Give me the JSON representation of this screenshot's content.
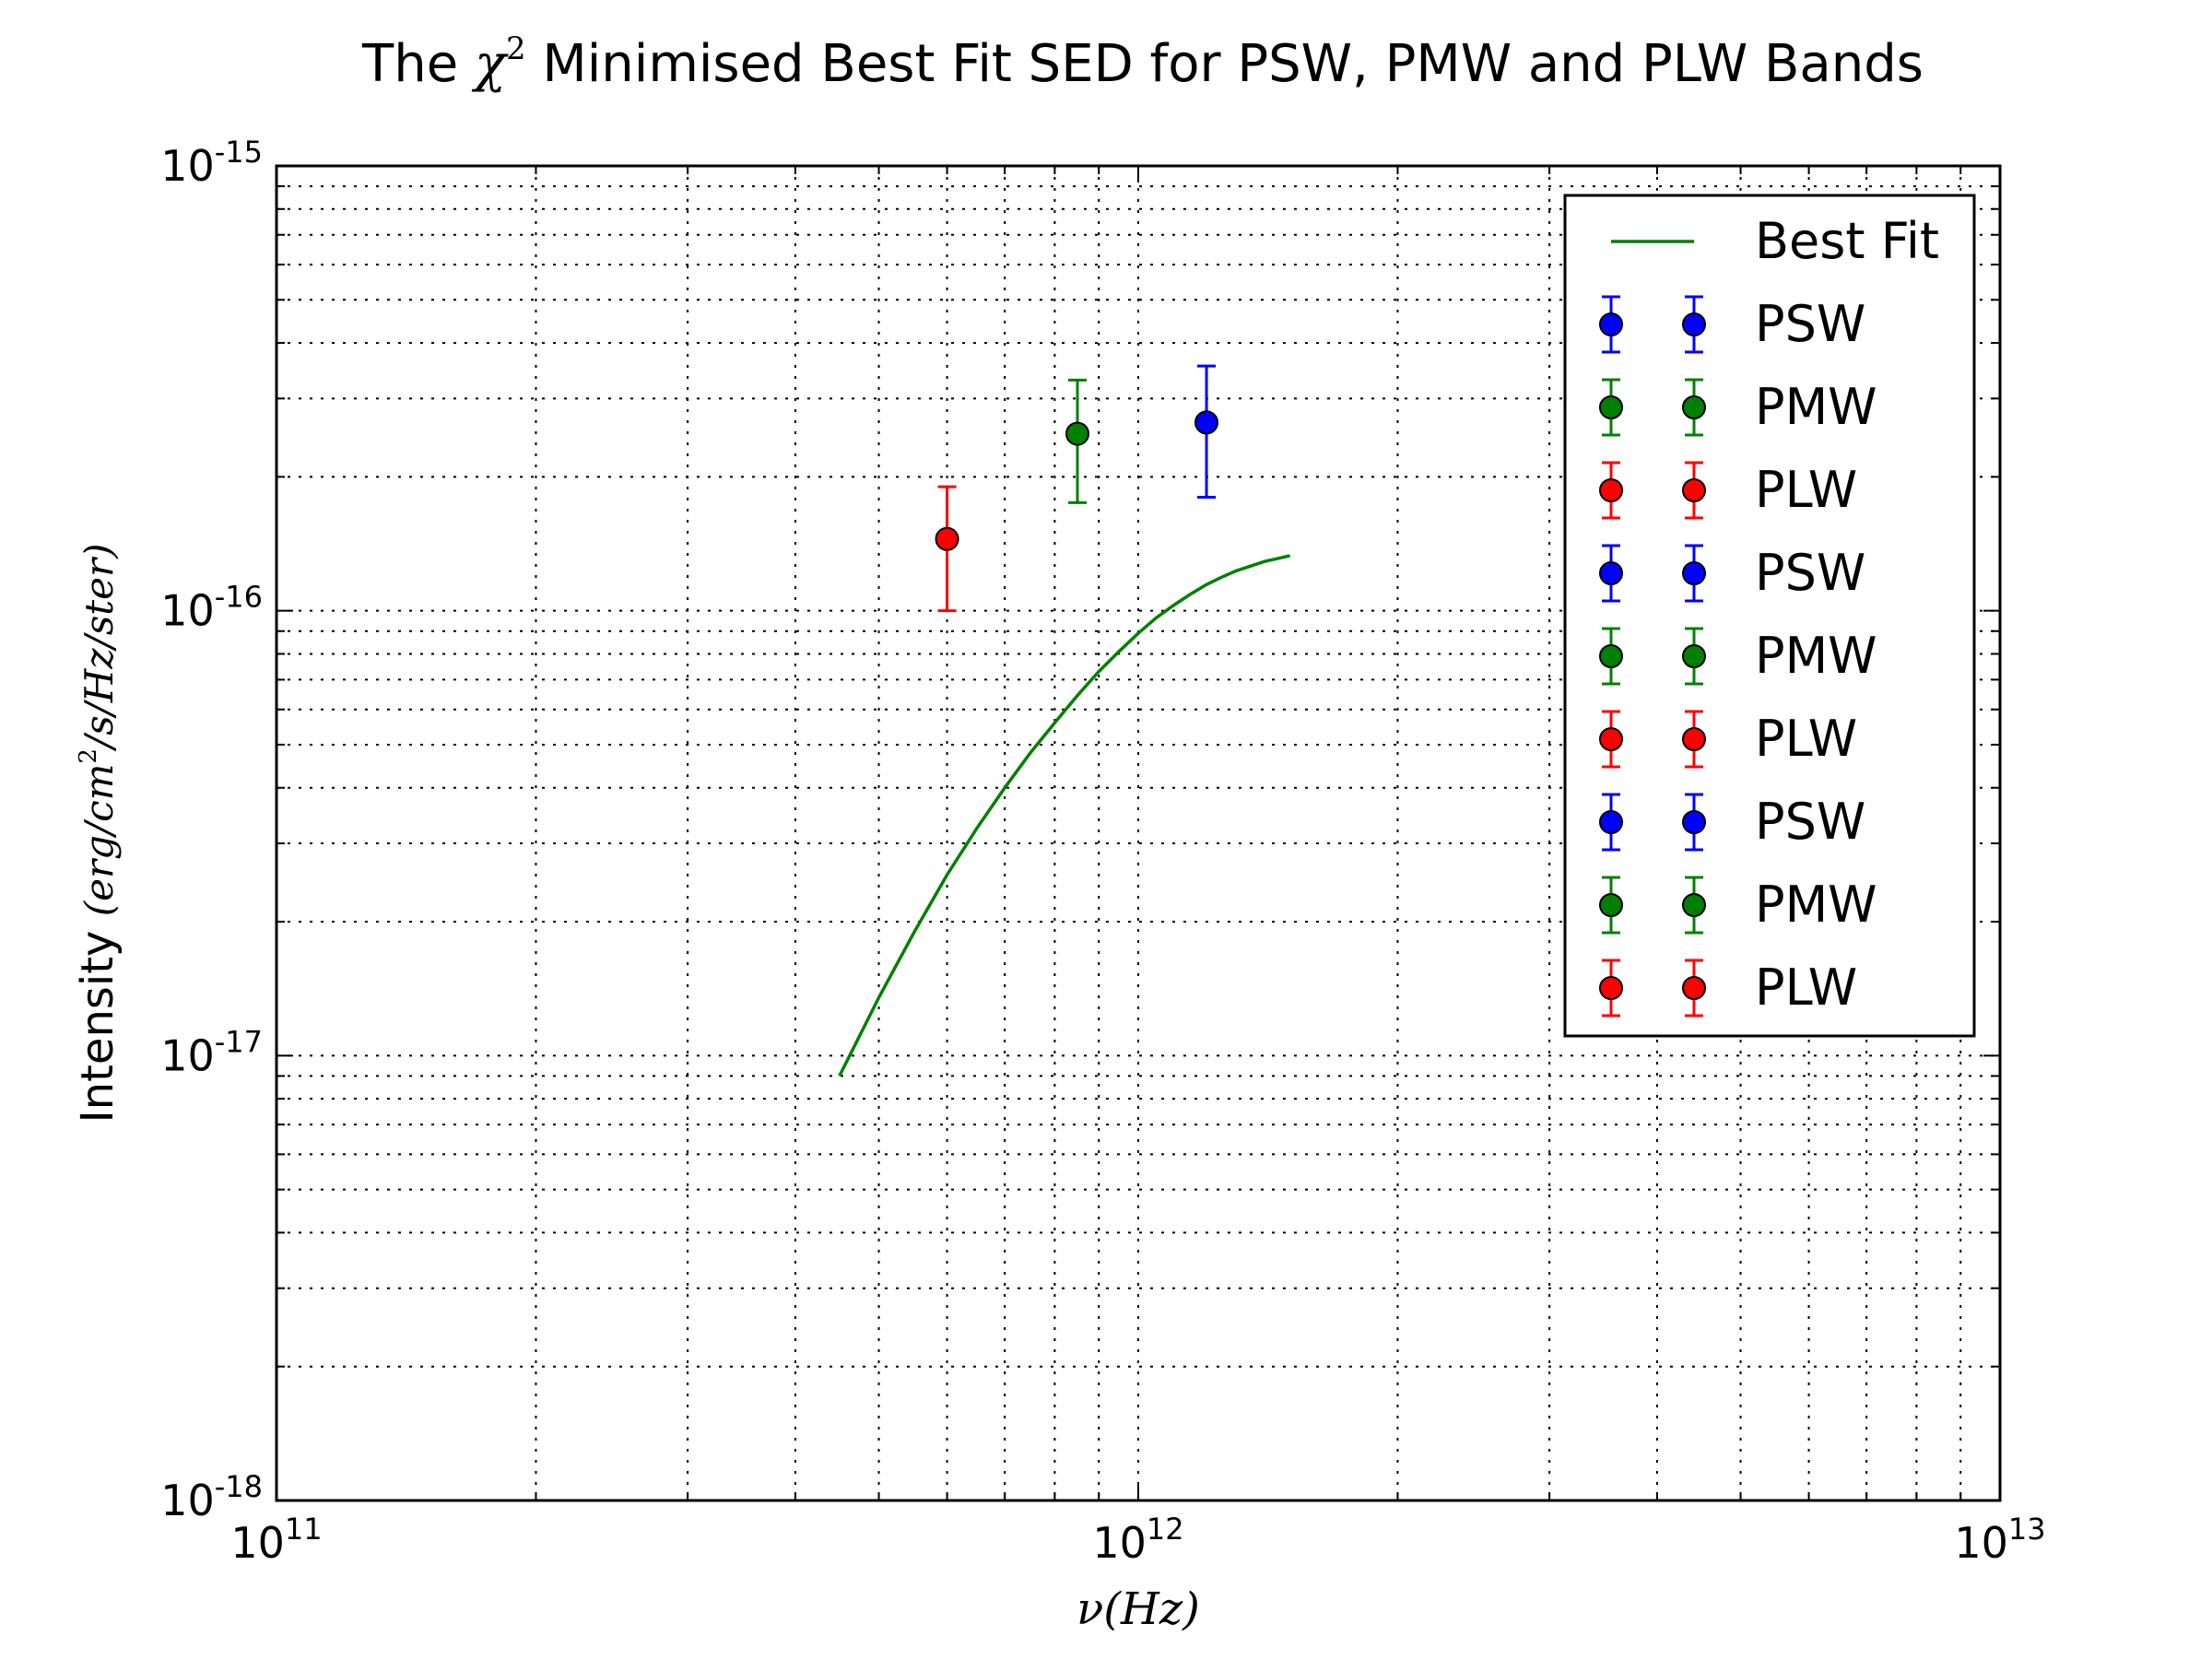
{
  "chart_data": {
    "type": "scatter",
    "title": {
      "prefix": "The",
      "symbol": "χ",
      "sup": "2",
      "suffix": "Minimised Best Fit SED for PSW, PMW and PLW Bands"
    },
    "xlabel": "ν(Hz)",
    "ylabel": {
      "text": "Intensity",
      "units_pre": "(erg/cm",
      "units_sup": "2",
      "units_post": "/s/Hz/ster)"
    },
    "xscale": "log",
    "yscale": "log",
    "xlim": [
      100000000000.0,
      10000000000000.0
    ],
    "ylim": [
      1e-18,
      1e-15
    ],
    "grid": true,
    "legend_position": "top-right",
    "x_ticks": [
      {
        "value": 100000000000.0,
        "base": "10",
        "exp": "11"
      },
      {
        "value": 1000000000000.0,
        "base": "10",
        "exp": "12"
      },
      {
        "value": 10000000000000.0,
        "base": "10",
        "exp": "13"
      }
    ],
    "y_ticks": [
      {
        "value": 1e-18,
        "base": "10",
        "exp": "-18"
      },
      {
        "value": 1e-17,
        "base": "10",
        "exp": "-17"
      },
      {
        "value": 1e-16,
        "base": "10",
        "exp": "-16"
      },
      {
        "value": 1e-15,
        "base": "10",
        "exp": "-15"
      }
    ],
    "best_fit": {
      "name": "Best Fit",
      "color": "#008000",
      "x": [
        450000000000.0,
        500000000000.0,
        550000000000.0,
        600000000000.0,
        650000000000.0,
        700000000000.0,
        750000000000.0,
        800000000000.0,
        850000000000.0,
        900000000000.0,
        950000000000.0,
        1000000000000.0,
        1050000000000.0,
        1100000000000.0,
        1150000000000.0,
        1200000000000.0,
        1250000000000.0,
        1300000000000.0,
        1350000000000.0,
        1400000000000.0,
        1450000000000.0,
        1500000000000.0
      ],
      "y": [
        9e-18,
        1.35e-17,
        1.9e-17,
        2.55e-17,
        3.25e-17,
        4e-17,
        4.8e-17,
        5.6e-17,
        6.45e-17,
        7.3e-17,
        8.1e-17,
        8.9e-17,
        9.65e-17,
        1.03e-16,
        1.09e-16,
        1.145e-16,
        1.19e-16,
        1.23e-16,
        1.26e-16,
        1.29e-16,
        1.31e-16,
        1.33e-16
      ]
    },
    "series": [
      {
        "name": "PLW",
        "color": "#ff0000",
        "x": 600000000000.0,
        "y": 1.45e-16,
        "yerr_low": 1e-16,
        "yerr_high": 1.9e-16
      },
      {
        "name": "PMW",
        "color": "#008000",
        "x": 850000000000.0,
        "y": 2.5e-16,
        "yerr_low": 1.75e-16,
        "yerr_high": 3.3e-16
      },
      {
        "name": "PSW",
        "color": "#0000ff",
        "x": 1200000000000.0,
        "y": 2.65e-16,
        "yerr_low": 1.8e-16,
        "yerr_high": 3.55e-16
      }
    ],
    "legend": [
      {
        "label": "Best Fit",
        "kind": "line",
        "color": "#008000"
      },
      {
        "label": "PSW",
        "kind": "errorbar",
        "color": "#0000ff"
      },
      {
        "label": "PMW",
        "kind": "errorbar",
        "color": "#008000"
      },
      {
        "label": "PLW",
        "kind": "errorbar",
        "color": "#ff0000"
      },
      {
        "label": "PSW",
        "kind": "errorbar",
        "color": "#0000ff"
      },
      {
        "label": "PMW",
        "kind": "errorbar",
        "color": "#008000"
      },
      {
        "label": "PLW",
        "kind": "errorbar",
        "color": "#ff0000"
      },
      {
        "label": "PSW",
        "kind": "errorbar",
        "color": "#0000ff"
      },
      {
        "label": "PMW",
        "kind": "errorbar",
        "color": "#008000"
      },
      {
        "label": "PLW",
        "kind": "errorbar",
        "color": "#ff0000"
      }
    ]
  }
}
